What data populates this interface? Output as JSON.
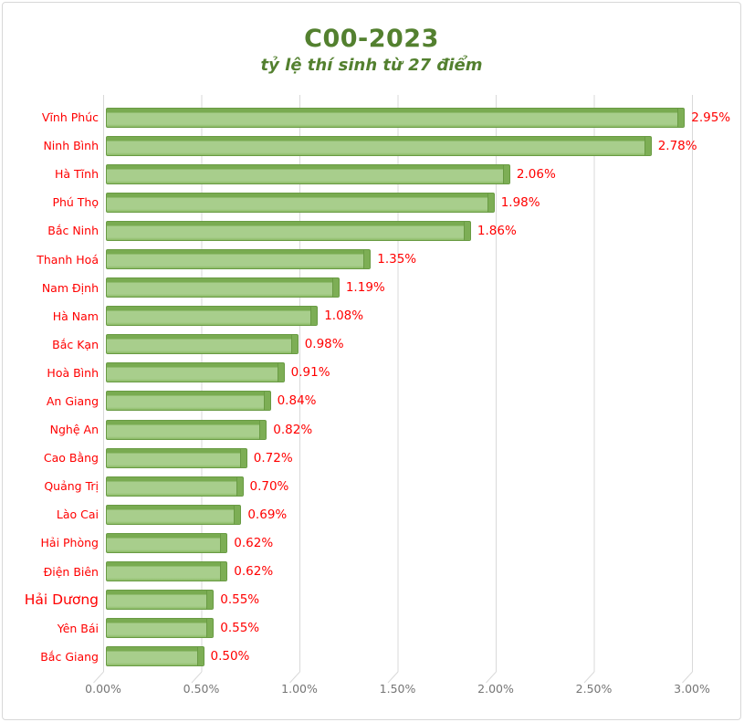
{
  "window": {
    "background": "#ffffff",
    "frame_border_color": "#d8d8d8"
  },
  "chart_data": {
    "type": "bar",
    "orientation": "horizontal",
    "style": "3d-excel",
    "title": "C00-2023",
    "subtitle": "tỷ lệ thí sinh từ 27 điểm",
    "categories": [
      "Vĩnh Phúc",
      "Ninh Bình",
      "Hà Tĩnh",
      "Phú Thọ",
      "Bắc Ninh",
      "Thanh Hoá",
      "Nam Định",
      "Hà Nam",
      "Bắc Kạn",
      "Hoà Bình",
      "An Giang",
      "Nghệ An",
      "Cao Bằng",
      "Quảng Trị",
      "Lào Cai",
      "Hải Phòng",
      "Điện Biên",
      "Hải Dương",
      "Yên Bái",
      "Bắc Giang"
    ],
    "values": [
      2.95,
      2.78,
      2.06,
      1.98,
      1.86,
      1.35,
      1.19,
      1.08,
      0.98,
      0.91,
      0.84,
      0.82,
      0.72,
      0.7,
      0.69,
      0.62,
      0.62,
      0.55,
      0.55,
      0.5
    ],
    "value_labels": [
      "2.95%",
      "2.78%",
      "2.06%",
      "1.98%",
      "1.86%",
      "1.35%",
      "1.19%",
      "1.08%",
      "0.98%",
      "0.91%",
      "0.84%",
      "0.82%",
      "0.72%",
      "0.70%",
      "0.69%",
      "0.62%",
      "0.62%",
      "0.55%",
      "0.55%",
      "0.50%"
    ],
    "x_ticks": [
      "0.00%",
      "0.50%",
      "1.00%",
      "1.50%",
      "2.00%",
      "2.50%",
      "3.00%"
    ],
    "xlim": [
      0,
      3
    ],
    "grid": true,
    "legend": "none",
    "large_label_index": 17,
    "colors": {
      "title_text": "#53802f",
      "category_label_text": "#ff0000",
      "value_label_text": "#ff0000",
      "bar_fill": "#a8ce8c",
      "bar_dark": "#79ab51",
      "bar_edge": "#699b43",
      "gridline": "#d9d9d9",
      "axis_text": "#757575"
    }
  }
}
